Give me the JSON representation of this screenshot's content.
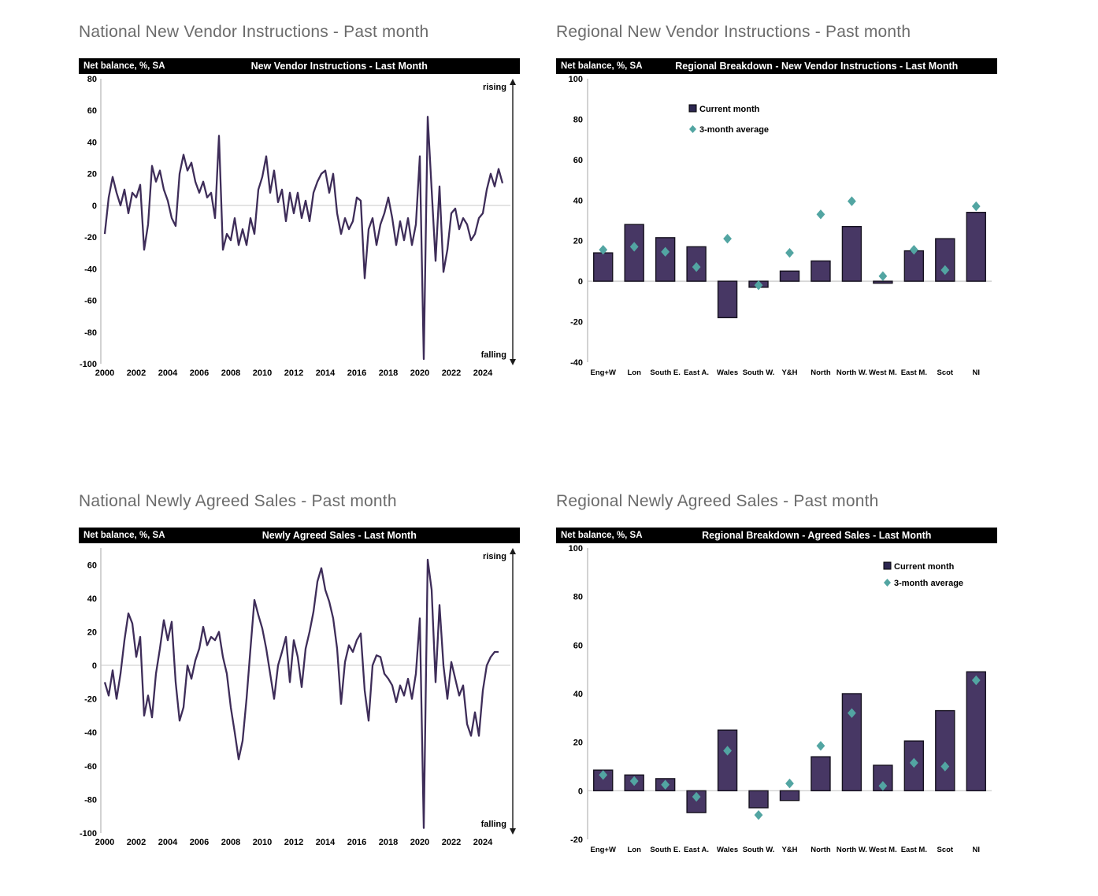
{
  "colors": {
    "bar_fill": "#473764",
    "bar_stroke": "#16121f",
    "diamond": "#52a5a2",
    "line": "#3e2d59",
    "header_bg": "#000000",
    "header_fg": "#ffffff",
    "title_gray": "#6b6b6b",
    "axis_line": "#a6a6a6",
    "zero_line": "#c8c8c8",
    "legend_square": "#2c2650"
  },
  "panels": [
    {
      "section_title": "National New Vendor Instructions - Past month",
      "unit_label": "Net balance, %, SA",
      "chart_title": "New Vendor Instructions - Last Month"
    },
    {
      "section_title": "Regional New Vendor Instructions - Past month",
      "unit_label": "Net balance, %, SA",
      "chart_title": "Regional Breakdown - New Vendor Instructions - Last Month"
    },
    {
      "section_title": "National Newly Agreed Sales - Past month",
      "unit_label": "Net balance, %, SA",
      "chart_title": "Newly Agreed Sales - Last Month"
    },
    {
      "section_title": "Regional Newly Agreed Sales - Past month",
      "unit_label": "Net balance, %, SA",
      "chart_title": "Regional Breakdown - Agreed Sales - Last Month"
    }
  ],
  "chart_data": [
    {
      "id": "national-new-vendor-instructions",
      "type": "line",
      "title": "New Vendor Instructions - Last Month",
      "ylabel": "Net balance, %, SA",
      "ylim": [
        -100,
        80
      ],
      "y_ticks": [
        80,
        60,
        40,
        20,
        0,
        -20,
        -40,
        -60,
        -80,
        -100
      ],
      "x_ticks": [
        2000,
        2002,
        2004,
        2006,
        2008,
        2010,
        2012,
        2014,
        2016,
        2018,
        2020,
        2022,
        2024
      ],
      "annotations": {
        "top": "rising",
        "bottom": "falling"
      },
      "grid": "zero-line-only",
      "legend_position": "none",
      "x_start": 2000,
      "x_step": 0.25,
      "values": [
        -18,
        5,
        18,
        8,
        0,
        10,
        -5,
        8,
        5,
        13,
        -28,
        -12,
        25,
        15,
        22,
        10,
        3,
        -8,
        -13,
        20,
        32,
        22,
        27,
        15,
        8,
        15,
        5,
        8,
        -8,
        44,
        -28,
        -18,
        -22,
        -8,
        -25,
        -15,
        -25,
        -8,
        -18,
        10,
        18,
        31,
        8,
        22,
        2,
        10,
        -10,
        8,
        -5,
        8,
        -8,
        3,
        -10,
        8,
        15,
        20,
        22,
        8,
        20,
        -5,
        -18,
        -8,
        -15,
        -10,
        5,
        3,
        -46,
        -15,
        -8,
        -25,
        -12,
        -5,
        5,
        -8,
        -25,
        -10,
        -22,
        -8,
        -25,
        -12,
        31,
        -97,
        56,
        10,
        -35,
        12,
        -42,
        -28,
        -5,
        -2,
        -15,
        -8,
        -12,
        -22,
        -18,
        -8,
        -5,
        10,
        20,
        12,
        23,
        14
      ]
    },
    {
      "id": "regional-new-vendor-instructions",
      "type": "bar",
      "title": "Regional Breakdown - New Vendor Instructions - Last Month",
      "ylabel": "Net balance, %, SA",
      "ylim": [
        -40,
        100
      ],
      "y_ticks": [
        100,
        80,
        60,
        40,
        20,
        0,
        -20,
        -40
      ],
      "categories": [
        "Eng+W",
        "Lon",
        "South E.",
        "East A.",
        "Wales",
        "South W.",
        "Y&H",
        "North",
        "North W.",
        "West M.",
        "East M.",
        "Scot",
        "NI"
      ],
      "series": [
        {
          "name": "Current month",
          "marker": "bar",
          "values": [
            14,
            28,
            21.5,
            17,
            -18,
            -3,
            5,
            10,
            27,
            -1,
            15,
            21,
            34
          ]
        },
        {
          "name": "3-month average",
          "marker": "diamond",
          "values": [
            15.5,
            17,
            14.5,
            7,
            21,
            -2,
            14,
            33,
            39.5,
            2.5,
            15.5,
            5.5,
            37
          ]
        }
      ],
      "grid": "zero-line-only",
      "legend_position": "inner-left"
    },
    {
      "id": "national-newly-agreed-sales",
      "type": "line",
      "title": "Newly Agreed Sales - Last Month",
      "ylabel": "Net balance, %, SA",
      "ylim": [
        -100,
        70
      ],
      "y_ticks": [
        60,
        40,
        20,
        0,
        -20,
        -40,
        -60,
        -80,
        -100
      ],
      "x_ticks": [
        2000,
        2002,
        2004,
        2006,
        2008,
        2010,
        2012,
        2014,
        2016,
        2018,
        2020,
        2022,
        2024
      ],
      "annotations": {
        "top": "rising",
        "bottom": "falling"
      },
      "grid": "zero-line-only",
      "legend_position": "none",
      "x_start": 2000,
      "x_step": 0.25,
      "values": [
        -10,
        -18,
        -3,
        -20,
        -5,
        15,
        31,
        25,
        5,
        17,
        -30,
        -18,
        -31,
        -5,
        10,
        27,
        15,
        26,
        -10,
        -33,
        -25,
        0,
        -8,
        3,
        10,
        23,
        12,
        17,
        15,
        20,
        5,
        -5,
        -25,
        -40,
        -56,
        -45,
        -20,
        10,
        39,
        30,
        22,
        10,
        -5,
        -20,
        0,
        8,
        17,
        -10,
        15,
        5,
        -13,
        10,
        20,
        32,
        50,
        58,
        45,
        38,
        28,
        10,
        -23,
        2,
        12,
        8,
        15,
        19,
        -15,
        -33,
        0,
        6,
        5,
        -5,
        -8,
        -12,
        -22,
        -12,
        -18,
        -8,
        -20,
        -5,
        28,
        -97,
        63,
        45,
        -10,
        36,
        0,
        -20,
        2,
        -8,
        -18,
        -12,
        -35,
        -42,
        -28,
        -42,
        -15,
        0,
        5,
        8,
        8
      ]
    },
    {
      "id": "regional-newly-agreed-sales",
      "type": "bar",
      "title": "Regional Breakdown - Agreed Sales - Last Month",
      "ylabel": "Net balance, %, SA",
      "ylim": [
        -20,
        100
      ],
      "y_ticks": [
        100,
        80,
        60,
        40,
        20,
        0,
        -20
      ],
      "categories": [
        "Eng+W",
        "Lon",
        "South E.",
        "East A.",
        "Wales",
        "South W.",
        "Y&H",
        "North",
        "North W.",
        "West M.",
        "East M.",
        "Scot",
        "NI"
      ],
      "series": [
        {
          "name": "Current month",
          "marker": "bar",
          "values": [
            8.5,
            6.5,
            5,
            -9,
            25,
            -7,
            -4,
            14,
            40,
            10.5,
            20.5,
            33,
            49
          ]
        },
        {
          "name": "3-month average",
          "marker": "diamond",
          "values": [
            6.5,
            4,
            2.5,
            -2.5,
            16.5,
            -10,
            3,
            18.5,
            32,
            2,
            11.5,
            10,
            45.5
          ]
        }
      ],
      "grid": "zero-line-only",
      "legend_position": "inner-right"
    }
  ]
}
